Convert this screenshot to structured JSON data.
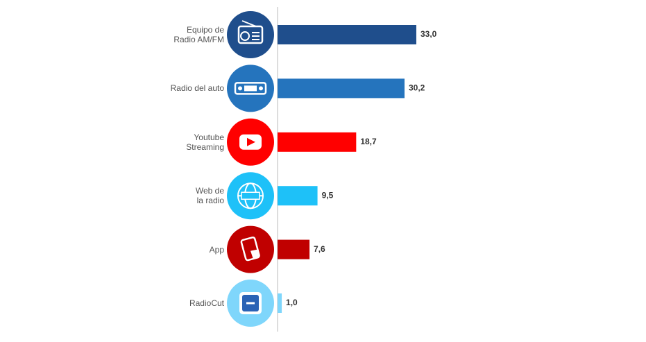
{
  "chart_data": {
    "type": "bar",
    "orientation": "horizontal",
    "categories": [
      "Equipo de\nRadio AM/FM",
      "Radio del auto",
      "Youtube\nStreaming",
      "Web de\nla radio",
      "App",
      "RadioCut"
    ],
    "values": [
      33.0,
      30.2,
      18.7,
      9.5,
      7.6,
      1.0
    ],
    "value_labels": [
      "33,0",
      "30,2",
      "18,7",
      "9,5",
      "7,6",
      "1,0"
    ],
    "colors": [
      "#1f4e8c",
      "#2574bd",
      "#ff0000",
      "#1ec1f8",
      "#c00000",
      "#7fd6fb"
    ]
  }
}
